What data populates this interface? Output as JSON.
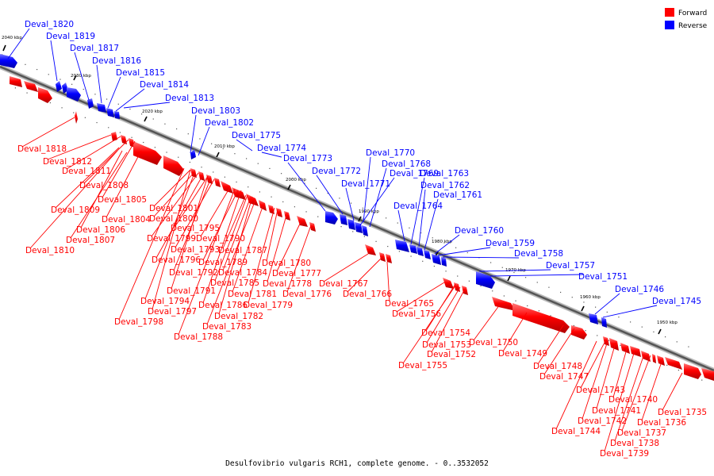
{
  "legend": {
    "forward_label": "Forward",
    "reverse_label": "Reverse",
    "forward_color": "#ff0000",
    "reverse_color": "#0000ff"
  },
  "caption": "Desulfovibrio vulgaris RCH1, complete genome. - 0..3532052",
  "ticks": [
    "2040 kbp",
    "2030 kbp",
    "2020 kbp",
    "2010 kbp",
    "2000 kbp",
    "1990 kbp",
    "1980 kbp",
    "1970 kbp",
    "1960 kbp",
    "1950 kbp"
  ],
  "reverse_labels": [
    "Deval_1820",
    "Deval_1819",
    "Deval_1817",
    "Deval_1816",
    "Deval_1815",
    "Deval_1814",
    "Deval_1813",
    "Deval_1803",
    "Deval_1802",
    "Deval_1775",
    "Deval_1774",
    "Deval_1773",
    "Deval_1772",
    "Deval_1771",
    "Deval_1770",
    "Deval_1768",
    "Deval_1769",
    "Deval_1763",
    "Deval_1762",
    "Deval_1761",
    "Deval_1764",
    "Deval_1760",
    "Deval_1759",
    "Deval_1758",
    "Deval_1757",
    "Deval_1751",
    "Deval_1746",
    "Deval_1745"
  ],
  "forward_labels": [
    "Deval_1818",
    "Deval_1812",
    "Deval_1811",
    "Deval_1808",
    "Deval_1805",
    "Deval_1809",
    "Deval_1804",
    "Deval_1806",
    "Deval_1807",
    "Deval_1810",
    "Deval_1801",
    "Deval_1800",
    "Deval_1795",
    "Deval_1799",
    "Deval_1790",
    "Deval_1793",
    "Deval_1787",
    "Deval_1796",
    "Deval_1789",
    "Deval_1780",
    "Deval_1792",
    "Deval_1784",
    "Deval_1777",
    "Deval_1791",
    "Deval_1785",
    "Deval_1778",
    "Deval_1767",
    "Deval_1781",
    "Deval_1776",
    "Deval_1766",
    "Deval_1794",
    "Deval_1786",
    "Deval_1779",
    "Deval_1765",
    "Deval_1797",
    "Deval_1782",
    "Deval_1756",
    "Deval_1798",
    "Deval_1783",
    "Deval_1788",
    "Deval_1754",
    "Deval_1753",
    "Deval_1750",
    "Deval_1752",
    "Deval_1749",
    "Deval_1755",
    "Deval_1748",
    "Deval_1747",
    "Deval_1743",
    "Deval_1740",
    "Deval_1741",
    "Deval_1735",
    "Deval_1742",
    "Deval_1736",
    "Deval_1744",
    "Deval_1737",
    "Deval_1738",
    "Deval_1739"
  ]
}
